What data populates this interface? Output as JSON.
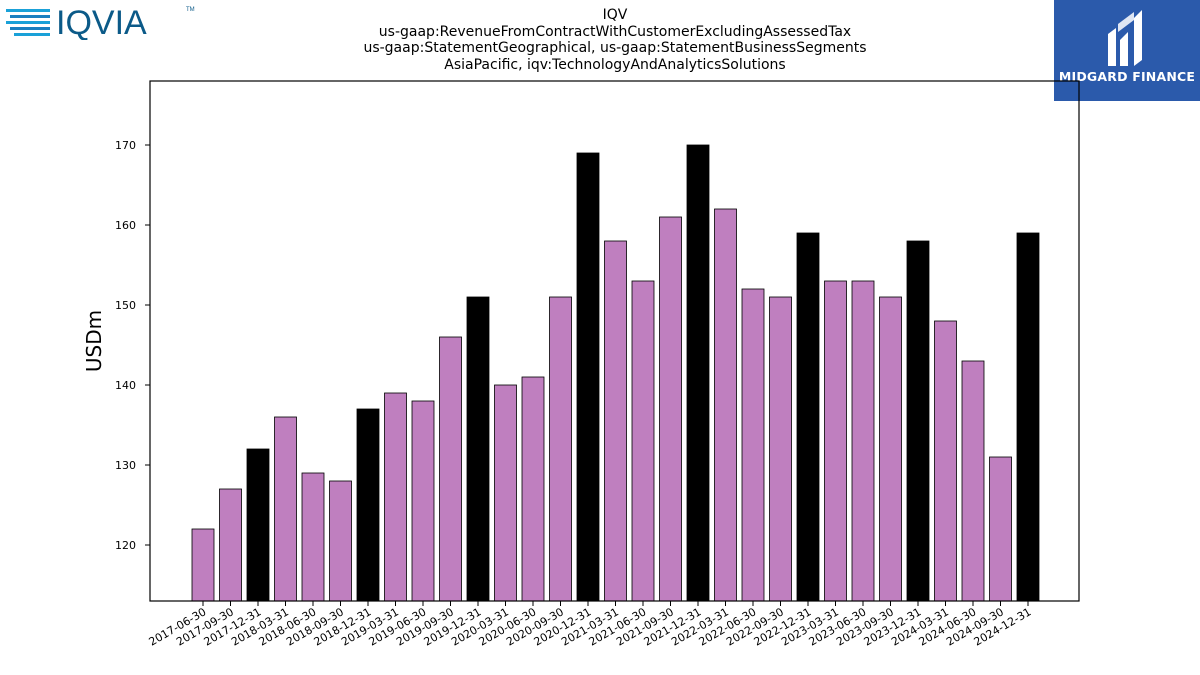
{
  "header": {
    "title_lines": [
      "IQV",
      "us-gaap:RevenueFromContractWithCustomerExcludingAssessedTax",
      "us-gaap:StatementGeographical, us-gaap:StatementBusinessSegments",
      "AsiaPacific, iqv:TechnologyAndAnalyticsSolutions"
    ]
  },
  "logos": {
    "left": {
      "text": "IQVIA",
      "trademark": "TM",
      "color": "#1aa1d8",
      "text_color": "#0b5a88",
      "icon": "stripes-icon"
    },
    "right": {
      "text": "MIDGARD FINANCE",
      "background": "#2b5aab",
      "icon": "midgard-mark-icon"
    }
  },
  "chart_data": {
    "type": "bar",
    "ylabel": "USDm",
    "xlabel": "",
    "ylim": [
      113,
      178
    ],
    "yticks": [
      120,
      130,
      140,
      150,
      160,
      170
    ],
    "grid": false,
    "legend": "none",
    "colors": {
      "quarter": "#bf7fbf",
      "year_end": "#000000",
      "edge": "#000000"
    },
    "categories": [
      "2017-06-30",
      "2017-09-30",
      "2017-12-31",
      "2018-03-31",
      "2018-06-30",
      "2018-09-30",
      "2018-12-31",
      "2019-03-31",
      "2019-06-30",
      "2019-09-30",
      "2019-12-31",
      "2020-03-31",
      "2020-06-30",
      "2020-09-30",
      "2020-12-31",
      "2021-03-31",
      "2021-06-30",
      "2021-09-30",
      "2021-12-31",
      "2022-03-31",
      "2022-06-30",
      "2022-09-30",
      "2022-12-31",
      "2023-03-31",
      "2023-06-30",
      "2023-09-30",
      "2023-12-31",
      "2024-03-31",
      "2024-06-30",
      "2024-09-30",
      "2024-12-31"
    ],
    "values": [
      122,
      127,
      132,
      136,
      129,
      128,
      137,
      139,
      138,
      146,
      151,
      140,
      141,
      151,
      169,
      158,
      153,
      161,
      170,
      162,
      152,
      151,
      159,
      153,
      153,
      151,
      158,
      148,
      143,
      131,
      159
    ],
    "year_end": [
      false,
      false,
      true,
      false,
      false,
      false,
      true,
      false,
      false,
      false,
      true,
      false,
      false,
      false,
      true,
      false,
      false,
      false,
      true,
      false,
      false,
      false,
      true,
      false,
      false,
      false,
      true,
      false,
      false,
      false,
      true
    ]
  }
}
